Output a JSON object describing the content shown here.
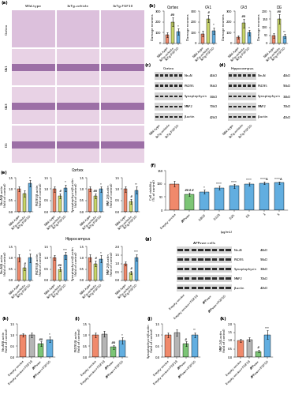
{
  "histology": {
    "panel_label": "(a)",
    "columns": [
      "Wild-type",
      "3xTg-vehicle",
      "3xTg-FGF10"
    ],
    "rows": [
      "Cortex",
      "CA1",
      "CA3",
      "DG"
    ]
  },
  "chart_data": [
    {
      "panel_label": "(b)",
      "title": "Cortex",
      "type": "bar",
      "categories": [
        "Wild-type",
        "3xTg-vehicle",
        "3xTg-FGF10"
      ],
      "values": [
        80,
        200,
        110
      ],
      "errors": [
        20,
        40,
        30
      ],
      "colors": [
        "#f0896b",
        "#c9d66a",
        "#62aee0"
      ],
      "ylim": [
        0,
        300
      ],
      "yticks": [
        0,
        100,
        200,
        300
      ],
      "y_label": "Damage neurons",
      "significance": {
        "3xTg-vehicle": "##",
        "3xTg-FGF10": "*"
      }
    },
    {
      "title": "CA1",
      "type": "bar",
      "categories": [
        "Wild-type",
        "3xTg-vehicle",
        "3xTg-FGF10"
      ],
      "values": [
        90,
        230,
        120
      ],
      "errors": [
        25,
        35,
        30
      ],
      "colors": [
        "#f0896b",
        "#c9d66a",
        "#62aee0"
      ],
      "ylim": [
        0,
        300
      ],
      "yticks": [
        0,
        100,
        200,
        300
      ],
      "y_label": "Damage neurons",
      "significance": {
        "3xTg-vehicle": "#",
        "3xTg-FGF10": "*"
      }
    },
    {
      "title": "CA3",
      "type": "bar",
      "categories": [
        "Wild-type",
        "3xTg-vehicle",
        "3xTg-FGF10"
      ],
      "values": [
        60,
        190,
        100
      ],
      "errors": [
        15,
        40,
        25
      ],
      "colors": [
        "#f0896b",
        "#c9d66a",
        "#62aee0"
      ],
      "ylim": [
        0,
        300
      ],
      "yticks": [
        0,
        100,
        200,
        300
      ],
      "y_label": "Damage neurons",
      "significance": {
        "3xTg-vehicle": "##",
        "3xTg-FGF10": "*"
      }
    },
    {
      "title": "DG",
      "type": "bar",
      "categories": [
        "Wild-type",
        "3xTg-vehicle",
        "3xTg-FGF10"
      ],
      "values": [
        50,
        150,
        45
      ],
      "errors": [
        15,
        30,
        12
      ],
      "colors": [
        "#f0896b",
        "#c9d66a",
        "#62aee0"
      ],
      "ylim": [
        0,
        200
      ],
      "yticks": [
        0,
        50,
        100,
        150,
        200
      ],
      "y_label": "Damage neurons",
      "significance": {
        "3xTg-vehicle": "##",
        "3xTg-FGF10": "**"
      }
    },
    {
      "panel_label": "(e)",
      "group": "Cortex",
      "type": "bar",
      "categories": [
        "Wild-type",
        "3xTg-vehicle",
        "3xTg-FGF10"
      ],
      "values": [
        1.0,
        0.8,
        1.25
      ],
      "errors": [
        0.1,
        0.15,
        0.15
      ],
      "colors": [
        "#f0896b",
        "#c9d66a",
        "#62aee0"
      ],
      "ylim": [
        0.0,
        1.5
      ],
      "yticks": [
        0.0,
        0.5,
        1.0,
        1.5
      ],
      "y_label": "NeuN/β-actin (fold of control)",
      "significance": {
        "3xTg-FGF10": "*"
      }
    },
    {
      "group": "Cortex",
      "type": "bar",
      "categories": [
        "Wild-type",
        "3xTg-vehicle",
        "3xTg-FGF10"
      ],
      "values": [
        1.0,
        0.7,
        1.05
      ],
      "errors": [
        0.12,
        0.1,
        0.15
      ],
      "colors": [
        "#f0896b",
        "#c9d66a",
        "#62aee0"
      ],
      "ylim": [
        0.0,
        1.5
      ],
      "yticks": [
        0.0,
        0.5,
        1.0,
        1.5
      ],
      "y_label": "PSD95/β-actin (fold of control)",
      "significance": {
        "3xTg-vehicle": "#",
        "3xTg-FGF10": "*"
      }
    },
    {
      "group": "Cortex",
      "type": "bar",
      "categories": [
        "Wild-type",
        "3xTg-vehicle",
        "3xTg-FGF10"
      ],
      "values": [
        1.0,
        0.7,
        1.0
      ],
      "errors": [
        0.1,
        0.1,
        0.12
      ],
      "colors": [
        "#f0896b",
        "#c9d66a",
        "#62aee0"
      ],
      "ylim": [
        0.0,
        1.5
      ],
      "yticks": [
        0.0,
        0.5,
        1.0,
        1.5
      ],
      "y_label": "Synaptophysin/β-actin (fold of control)",
      "significance": {
        "3xTg-vehicle": "##",
        "3xTg-FGF10": "*"
      }
    },
    {
      "group": "Cortex",
      "type": "bar",
      "categories": [
        "Wild-type",
        "3xTg-vehicle",
        "3xTg-FGF10"
      ],
      "values": [
        1.0,
        0.45,
        0.95
      ],
      "errors": [
        0.12,
        0.1,
        0.15
      ],
      "colors": [
        "#f0896b",
        "#c9d66a",
        "#62aee0"
      ],
      "ylim": [
        0.0,
        1.5
      ],
      "yticks": [
        0.0,
        0.5,
        1.0,
        1.5
      ],
      "y_label": "MAP-2/β-actin (fold of control)",
      "significance": {
        "3xTg-vehicle": "#",
        "3xTg-FGF10": "**"
      }
    },
    {
      "group": "Hippocampus",
      "type": "bar",
      "categories": [
        "Wild-type",
        "3xTg-vehicle",
        "3xTg-FGF10"
      ],
      "values": [
        1.0,
        0.55,
        1.0
      ],
      "errors": [
        0.15,
        0.1,
        0.2
      ],
      "colors": [
        "#f0896b",
        "#c9d66a",
        "#62aee0"
      ],
      "ylim": [
        0.0,
        1.5
      ],
      "yticks": [
        0.0,
        0.5,
        1.0,
        1.5
      ],
      "y_label": "NeuN/β-actin (fold of control)",
      "significance": {
        "3xTg-vehicle": "#",
        "3xTg-FGF10": "*"
      }
    },
    {
      "group": "Hippocampus",
      "type": "bar",
      "categories": [
        "Wild-type",
        "3xTg-vehicle",
        "3xTg-FGF10"
      ],
      "values": [
        1.0,
        0.5,
        1.1
      ],
      "errors": [
        0.1,
        0.08,
        0.15
      ],
      "colors": [
        "#f0896b",
        "#c9d66a",
        "#62aee0"
      ],
      "ylim": [
        0.0,
        1.5
      ],
      "yticks": [
        0.0,
        0.5,
        1.0,
        1.5
      ],
      "y_label": "PSD95/β-actin (fold of control)",
      "significance": {
        "3xTg-vehicle": "##",
        "3xTg-FGF10": "***"
      }
    },
    {
      "group": "Hippocampus",
      "type": "bar",
      "categories": [
        "Wild-type",
        "3xTg-vehicle",
        "3xTg-FGF10"
      ],
      "values": [
        1.0,
        0.75,
        0.95
      ],
      "errors": [
        0.15,
        0.12,
        0.15
      ],
      "colors": [
        "#f0896b",
        "#c9d66a",
        "#62aee0"
      ],
      "ylim": [
        0.0,
        1.5
      ],
      "yticks": [
        0.0,
        0.5,
        1.0,
        1.5
      ],
      "y_label": "Synaptophysin/β-actin (fold of control)",
      "significance": {
        "3xTg-vehicle": "#",
        "3xTg-FGF10": "*"
      }
    },
    {
      "group": "Hippocampus",
      "type": "bar",
      "categories": [
        "Wild-type",
        "3xTg-vehicle",
        "3xTg-FGF10"
      ],
      "values": [
        1.0,
        0.45,
        1.35
      ],
      "errors": [
        0.1,
        0.1,
        0.2
      ],
      "colors": [
        "#f0896b",
        "#c9d66a",
        "#62aee0"
      ],
      "ylim": [
        0.0,
        2.0
      ],
      "yticks": [
        0.0,
        0.5,
        1.0,
        1.5,
        2.0
      ],
      "y_label": "MAP-2/β-actin (fold of control)",
      "significance": {
        "3xTg-vehicle": "#",
        "3xTg-FGF10": "***"
      }
    },
    {
      "panel_label": "(f)",
      "type": "bar",
      "categories": [
        "Empty vector",
        "APPswe",
        "0.002",
        "0.125",
        "0.25",
        "0.5",
        "1",
        "5"
      ],
      "values": [
        100,
        60,
        70,
        85,
        92,
        100,
        103,
        104
      ],
      "errors": [
        10,
        5,
        8,
        8,
        7,
        6,
        5,
        5
      ],
      "colors": [
        "#f0896b",
        "#7cc576",
        "#62aee0",
        "#62aee0",
        "#62aee0",
        "#62aee0",
        "#62aee0",
        "#62aee0"
      ],
      "ylim": [
        0,
        150
      ],
      "yticks": [
        0,
        50,
        100,
        150
      ],
      "y_label": "Cell viability (% of control)",
      "x_label": "(μg/mL)",
      "significance": {
        "APPswe": "####",
        "0.002": "*",
        "0.125": "****",
        "0.25": "****",
        "0.5": "****",
        "1": "****Δ",
        "5": "****Δ"
      }
    },
    {
      "panel_label": "(h)",
      "type": "bar",
      "categories": [
        "Empty vector",
        "Empty vector+FGF10",
        "APPswe",
        "APPswe+FGF10"
      ],
      "values": [
        1.0,
        1.0,
        0.6,
        0.8
      ],
      "errors": [
        0.08,
        0.1,
        0.1,
        0.12
      ],
      "colors": [
        "#f0896b",
        "#b5b5b5",
        "#7cc576",
        "#62aee0"
      ],
      "ylim": [
        0.0,
        1.5
      ],
      "yticks": [
        0.0,
        0.5,
        1.0,
        1.5
      ],
      "y_label": "NeuN/β-actin (fold of control)",
      "significance": {
        "APPswe": "##",
        "APPswe+FGF10": "*"
      }
    },
    {
      "panel_label": "(i)",
      "type": "bar",
      "categories": [
        "Empty vector",
        "Empty vector+FGF10",
        "APPswe",
        "APPswe+FGF10"
      ],
      "values": [
        1.0,
        1.05,
        0.45,
        0.75
      ],
      "errors": [
        0.1,
        0.12,
        0.1,
        0.15
      ],
      "colors": [
        "#f0896b",
        "#b5b5b5",
        "#7cc576",
        "#62aee0"
      ],
      "ylim": [
        0.0,
        1.5
      ],
      "yticks": [
        0.0,
        0.5,
        1.0,
        1.5
      ],
      "y_label": "PSD95/β-actin (fold of control)",
      "significance": {
        "APPswe": "##",
        "APPswe+FGF10": "*"
      }
    },
    {
      "panel_label": "(j)",
      "type": "bar",
      "categories": [
        "Empty vector",
        "Empty vector+FGF10",
        "APPswe",
        "APPswe+FGF10"
      ],
      "values": [
        1.0,
        1.1,
        0.6,
        1.0
      ],
      "errors": [
        0.1,
        0.15,
        0.1,
        0.12
      ],
      "colors": [
        "#f0896b",
        "#b5b5b5",
        "#7cc576",
        "#62aee0"
      ],
      "ylim": [
        0.0,
        1.5
      ],
      "yticks": [
        0.0,
        0.5,
        1.0,
        1.5
      ],
      "y_label": "Synaptophysin/β-actin (fold of control)",
      "significance": {
        "APPswe": "#",
        "APPswe+FGF10": "**"
      }
    },
    {
      "panel_label": "(k)",
      "type": "bar",
      "categories": [
        "Empty vector",
        "Empty vector+FGF10",
        "APPswe",
        "APPswe+FGF10"
      ],
      "values": [
        1.0,
        1.05,
        0.35,
        1.35
      ],
      "errors": [
        0.1,
        0.12,
        0.08,
        0.25
      ],
      "colors": [
        "#f0896b",
        "#b5b5b5",
        "#7cc576",
        "#62aee0"
      ],
      "ylim": [
        0.0,
        2.0
      ],
      "yticks": [
        0.0,
        0.5,
        1.0,
        1.5,
        2.0
      ],
      "y_label": "MAP-2/β-actin (fold of control)",
      "significance": {
        "APPswe": "#",
        "APPswe+FGF10": "***"
      }
    }
  ],
  "blots": [
    {
      "panel_label": "(c)",
      "title": "Cortex",
      "proteins": [
        {
          "name": "NeuN",
          "size": "46kD"
        },
        {
          "name": "PSD95",
          "size": "95kD"
        },
        {
          "name": "Synaptophysin",
          "size": "34kD"
        },
        {
          "name": "MAP2",
          "size": "70kD"
        },
        {
          "name": "β-actin",
          "size": "42kD"
        }
      ],
      "lanes": [
        "Wild-type",
        "3xTg-vehicle",
        "3xTg-FGF10"
      ]
    },
    {
      "panel_label": "(d)",
      "title": "Hippocampus",
      "proteins": [
        {
          "name": "NeuN",
          "size": "46kD"
        },
        {
          "name": "PSD95",
          "size": "95kD"
        },
        {
          "name": "Synaptophysin",
          "size": "34kD"
        },
        {
          "name": "MAP2",
          "size": "70kD"
        },
        {
          "name": "β-actin",
          "size": "42kD"
        }
      ],
      "lanes": [
        "Wild-type",
        "3xTg-vehicle",
        "3xTg-FGF10"
      ]
    },
    {
      "panel_label": "(g)",
      "title": "APPswe cells",
      "proteins": [
        {
          "name": "NeuN",
          "size": "46kD"
        },
        {
          "name": "PSD95",
          "size": "95kD"
        },
        {
          "name": "Synaptophysin",
          "size": "34kD"
        },
        {
          "name": "MAP2",
          "size": "70kD"
        },
        {
          "name": "β-actin",
          "size": "42kD"
        }
      ],
      "lanes": [
        "Empty vector",
        "Empty vector+FGF10",
        "APPswe",
        "APPswe+FGF10"
      ]
    }
  ]
}
